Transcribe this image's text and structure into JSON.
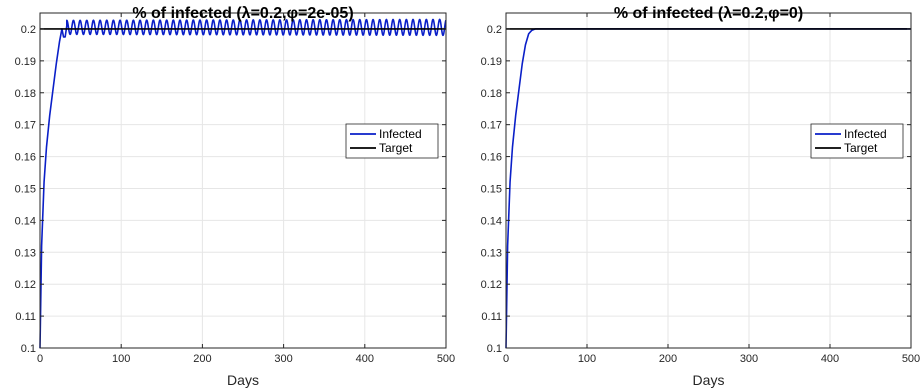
{
  "colors": {
    "infected": "#0a1fc8",
    "target": "#000000",
    "grid": "#e6e6e6",
    "axes": "#262626"
  },
  "chart_data": [
    {
      "type": "line",
      "title": "% of infected (λ=0.2,φ=2e-05)",
      "xlabel": "Days",
      "ylabel": "",
      "xlim": [
        0,
        500
      ],
      "ylim": [
        0.1,
        0.205
      ],
      "xticks": [
        0,
        100,
        200,
        300,
        400,
        500
      ],
      "yticks": [
        0.1,
        0.11,
        0.12,
        0.13,
        0.14,
        0.15,
        0.16,
        0.17,
        0.18,
        0.19,
        0.2
      ],
      "grid": true,
      "legend": {
        "placement": "right-middle",
        "entries": [
          "Infected",
          "Target"
        ]
      },
      "series": [
        {
          "name": "Infected",
          "color": "#0a1fc8",
          "rise": {
            "x": [
              0,
              2,
              5,
              8,
              12,
              16,
              20,
              24,
              27,
              29,
              31,
              33
            ],
            "y": [
              0.1,
              0.132,
              0.152,
              0.163,
              0.173,
              0.181,
              0.189,
              0.196,
              0.2,
              0.1975,
              0.1975,
              0.201
            ]
          },
          "oscillation": {
            "x_start": 33,
            "x_end": 500,
            "period": 8.2,
            "center": 0.2005,
            "amplitude": 0.0022,
            "end_amplitude": 0.0025
          }
        },
        {
          "name": "Target",
          "color": "#000000",
          "x": [
            0,
            500
          ],
          "y": [
            0.2,
            0.2
          ]
        }
      ]
    },
    {
      "type": "line",
      "title": "% of infected (λ=0.2,φ=0)",
      "xlabel": "Days",
      "ylabel": "",
      "xlim": [
        0,
        500
      ],
      "ylim": [
        0.1,
        0.205
      ],
      "xticks": [
        0,
        100,
        200,
        300,
        400,
        500
      ],
      "yticks": [
        0.1,
        0.11,
        0.12,
        0.13,
        0.14,
        0.15,
        0.16,
        0.17,
        0.18,
        0.19,
        0.2
      ],
      "grid": true,
      "legend": {
        "placement": "right-middle",
        "entries": [
          "Infected",
          "Target"
        ]
      },
      "series": [
        {
          "name": "Infected",
          "color": "#0a1fc8",
          "x": [
            0,
            2,
            5,
            8,
            12,
            16,
            20,
            24,
            28,
            32,
            36,
            40,
            500
          ],
          "y": [
            0.1,
            0.132,
            0.152,
            0.163,
            0.173,
            0.181,
            0.189,
            0.195,
            0.1985,
            0.1996,
            0.2,
            0.2,
            0.2
          ]
        },
        {
          "name": "Target",
          "color": "#000000",
          "x": [
            0,
            500
          ],
          "y": [
            0.2,
            0.2
          ]
        }
      ]
    }
  ]
}
